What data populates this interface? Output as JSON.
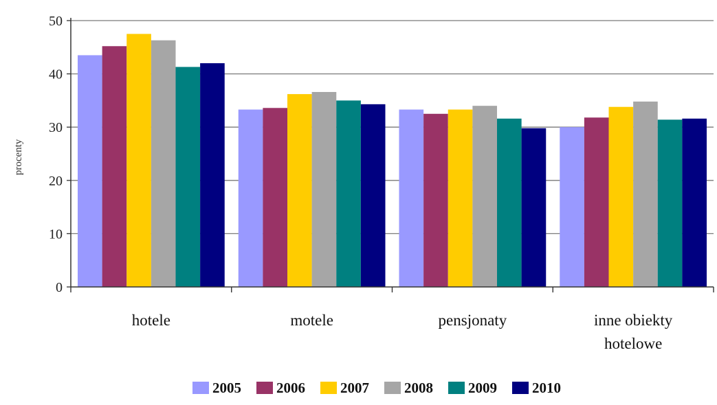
{
  "chart_data": {
    "type": "bar",
    "title": "",
    "xlabel": "",
    "ylabel": "procenty",
    "ylim": [
      0,
      50
    ],
    "yticks": [
      0,
      10,
      20,
      30,
      40,
      50
    ],
    "grid": true,
    "legend_position": "bottom",
    "categories": [
      [
        "hotele"
      ],
      [
        "motele"
      ],
      [
        "pensjonaty"
      ],
      [
        "inne obiekty",
        "hotelowe"
      ]
    ],
    "series": [
      {
        "name": "2005",
        "color": "#9999ff",
        "values": [
          43.5,
          33.3,
          33.3,
          30.0
        ]
      },
      {
        "name": "2006",
        "color": "#993366",
        "values": [
          45.2,
          33.6,
          32.5,
          31.8
        ]
      },
      {
        "name": "2007",
        "color": "#ffcc00",
        "values": [
          47.5,
          36.2,
          33.3,
          33.8
        ]
      },
      {
        "name": "2008",
        "color": "#a6a6a6",
        "values": [
          46.3,
          36.6,
          34.0,
          34.8
        ]
      },
      {
        "name": "2009",
        "color": "#008080",
        "values": [
          41.3,
          35.0,
          31.6,
          31.4
        ]
      },
      {
        "name": "2010",
        "color": "#000080",
        "values": [
          42.0,
          34.3,
          29.8,
          31.6
        ]
      }
    ]
  }
}
